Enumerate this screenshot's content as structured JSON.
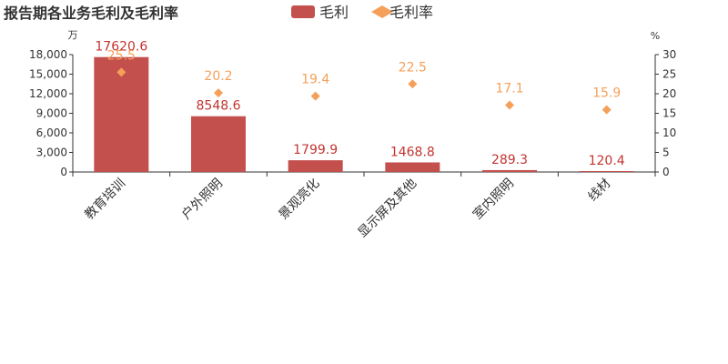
{
  "title": "报告期各业务毛利及毛利率",
  "legend": [
    {
      "name": "毛利",
      "color": "#c4504d",
      "shape": "bar-swatch"
    },
    {
      "name": "毛利率",
      "color": "#f5a05a",
      "shape": "diamond"
    }
  ],
  "axes": {
    "left_unit": "万",
    "right_unit": "%",
    "left_ticks": [
      "0",
      "3,000",
      "6,000",
      "9,000",
      "12,000",
      "15,000",
      "18,000"
    ],
    "right_ticks": [
      "0",
      "5",
      "10",
      "15",
      "20",
      "25",
      "30"
    ]
  },
  "chart_data": {
    "type": "bar",
    "title": "报告期各业务毛利及毛利率",
    "categories": [
      "教育培训",
      "户外照明",
      "景观亮化",
      "显示屏及其他",
      "室内照明",
      "线材"
    ],
    "series": [
      {
        "name": "毛利",
        "type": "bar",
        "axis": "left",
        "color": "#c4504d",
        "values": [
          17620.6,
          8548.6,
          1799.9,
          1468.8,
          289.3,
          120.4
        ],
        "labels": [
          "17620.6",
          "8548.6",
          "1799.9",
          "1468.8",
          "289.3",
          "120.4"
        ]
      },
      {
        "name": "毛利率",
        "type": "scatter",
        "axis": "right",
        "color": "#f5a05a",
        "marker": "diamond",
        "values": [
          25.5,
          20.2,
          19.4,
          22.5,
          17.1,
          15.9
        ],
        "labels": [
          "25.5",
          "20.2",
          "19.4",
          "22.5",
          "17.1",
          "15.9"
        ]
      }
    ],
    "ylim_left": [
      0,
      18000
    ],
    "ylim_right": [
      0,
      30
    ],
    "grid": false,
    "legend_position": "top-center"
  }
}
